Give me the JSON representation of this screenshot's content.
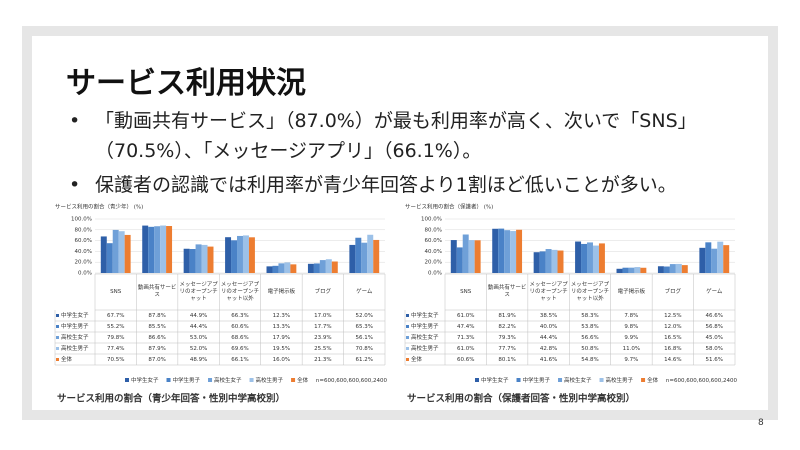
{
  "slide": {
    "title": "サービス利用状況",
    "bullets": [
      "「動画共有サービス」（87.0%）が最も利用率が高く、次いで「SNS」（70.5%）、「メッセージアプリ」（66.1%）。",
      "保護者の認識では利用率が青少年回答より1割ほど低いことが多い。"
    ],
    "page_number": "8"
  },
  "chart_data": [
    {
      "type": "bar",
      "title": "サービス利用の割合（青少年） (%)",
      "caption": "サービス利用の割合（青少年回答・性別中学高校別）",
      "note": "n=600,600,600,600,2400",
      "categories": [
        "SNS",
        "動画共有サービス",
        "メッセージアプリのオープンチャット",
        "メッセージアプリのオープンチャット以外",
        "電子掲示板",
        "ブログ",
        "ゲーム"
      ],
      "ylim": [
        0,
        100
      ],
      "yticks": [
        {
          "value": 0,
          "label": "0.0%"
        },
        {
          "value": 20,
          "label": "20.0%"
        },
        {
          "value": 40,
          "label": "40.0%"
        },
        {
          "value": 60,
          "label": "60.0%"
        },
        {
          "value": 80,
          "label": "80.0%"
        },
        {
          "value": 100,
          "label": "100.0%"
        }
      ],
      "grid": true,
      "series": [
        {
          "name": "中学生女子",
          "color": "#2e5fa8",
          "values": [
            67.7,
            87.8,
            44.9,
            66.3,
            12.3,
            17.0,
            52.0
          ],
          "value_labels": [
            "67.7%",
            "87.8%",
            "44.9%",
            "66.3%",
            "12.3%",
            "17.0%",
            "52.0%"
          ]
        },
        {
          "name": "中学生男子",
          "color": "#4a82c7",
          "values": [
            55.2,
            85.5,
            44.4,
            60.6,
            13.3,
            17.7,
            65.3
          ],
          "value_labels": [
            "55.2%",
            "85.5%",
            "44.4%",
            "60.6%",
            "13.3%",
            "17.7%",
            "65.3%"
          ]
        },
        {
          "name": "高校生女子",
          "color": "#6fa0d8",
          "values": [
            79.8,
            86.6,
            53.0,
            68.6,
            17.9,
            23.9,
            56.1
          ],
          "value_labels": [
            "79.8%",
            "86.6%",
            "53.0%",
            "68.6%",
            "17.9%",
            "23.9%",
            "56.1%"
          ]
        },
        {
          "name": "高校生男子",
          "color": "#9cc1e8",
          "values": [
            77.4,
            87.9,
            52.0,
            69.6,
            19.5,
            25.5,
            70.8
          ],
          "value_labels": [
            "77.4%",
            "87.9%",
            "52.0%",
            "69.6%",
            "19.5%",
            "25.5%",
            "70.8%"
          ]
        },
        {
          "name": "全体",
          "color": "#ed7d31",
          "values": [
            70.5,
            87.0,
            48.9,
            66.1,
            16.0,
            21.3,
            61.2
          ],
          "value_labels": [
            "70.5%",
            "87.0%",
            "48.9%",
            "66.1%",
            "16.0%",
            "21.3%",
            "61.2%"
          ]
        }
      ]
    },
    {
      "type": "bar",
      "title": "サービス利用の割合（保護者） (%)",
      "caption": "サービス利用の割合（保護者回答・性別中学高校別）",
      "note": "n=600,600,600,600,2400",
      "categories": [
        "SNS",
        "動画共有サービス",
        "メッセージアプリのオープンチャット",
        "メッセージアプリのオープンチャット以外",
        "電子掲示板",
        "ブログ",
        "ゲーム"
      ],
      "ylim": [
        0,
        100
      ],
      "yticks": [
        {
          "value": 0,
          "label": "0.0%"
        },
        {
          "value": 20,
          "label": "20.0%"
        },
        {
          "value": 40,
          "label": "40.0%"
        },
        {
          "value": 60,
          "label": "60.0%"
        },
        {
          "value": 80,
          "label": "80.0%"
        },
        {
          "value": 100,
          "label": "100.0%"
        }
      ],
      "grid": true,
      "series": [
        {
          "name": "中学生女子",
          "color": "#2e5fa8",
          "values": [
            61.0,
            81.9,
            38.5,
            58.3,
            7.8,
            12.5,
            46.6
          ],
          "value_labels": [
            "61.0%",
            "81.9%",
            "38.5%",
            "58.3%",
            "7.8%",
            "12.5%",
            "46.6%"
          ]
        },
        {
          "name": "中学生男子",
          "color": "#4a82c7",
          "values": [
            47.4,
            82.2,
            40.0,
            53.8,
            9.8,
            12.0,
            56.8
          ],
          "value_labels": [
            "47.4%",
            "82.2%",
            "40.0%",
            "53.8%",
            "9.8%",
            "12.0%",
            "56.8%"
          ]
        },
        {
          "name": "高校生女子",
          "color": "#6fa0d8",
          "values": [
            71.3,
            79.3,
            44.4,
            56.6,
            9.9,
            16.5,
            45.0
          ],
          "value_labels": [
            "71.3%",
            "79.3%",
            "44.4%",
            "56.6%",
            "9.9%",
            "16.5%",
            "45.0%"
          ]
        },
        {
          "name": "高校生男子",
          "color": "#9cc1e8",
          "values": [
            61.0,
            77.7,
            42.8,
            50.8,
            11.0,
            16.8,
            58.0
          ],
          "value_labels": [
            "61.0%",
            "77.7%",
            "42.8%",
            "50.8%",
            "11.0%",
            "16.8%",
            "58.0%"
          ]
        },
        {
          "name": "全体",
          "color": "#ed7d31",
          "values": [
            60.6,
            80.1,
            41.6,
            54.8,
            9.7,
            14.6,
            51.6
          ],
          "value_labels": [
            "60.6%",
            "80.1%",
            "41.6%",
            "54.8%",
            "9.7%",
            "14.6%",
            "51.6%"
          ]
        }
      ]
    }
  ]
}
